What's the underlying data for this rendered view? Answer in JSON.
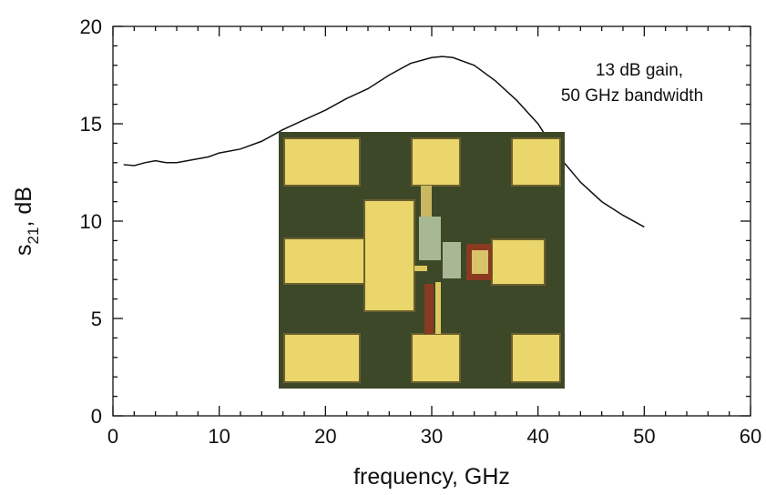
{
  "chart_data": {
    "type": "line",
    "x_label": "frequency, GHz",
    "y_label": [
      "s",
      "21",
      ", dB"
    ],
    "annotation": [
      "13 dB gain,",
      "50 GHz bandwidth"
    ],
    "x": [
      1,
      2,
      3,
      4,
      5,
      6,
      7,
      8,
      9,
      10,
      12,
      14,
      16,
      18,
      20,
      22,
      24,
      26,
      28,
      30,
      31,
      32,
      34,
      36,
      38,
      40,
      42,
      44,
      46,
      48,
      50
    ],
    "series": [
      {
        "color": "#111111",
        "values": [
          12.9,
          12.85,
          13.0,
          13.1,
          13.0,
          13.0,
          13.1,
          13.2,
          13.3,
          13.5,
          13.7,
          14.1,
          14.7,
          15.2,
          15.7,
          16.3,
          16.8,
          17.5,
          18.1,
          18.4,
          18.45,
          18.4,
          18.0,
          17.2,
          16.2,
          15.0,
          13.3,
          12.0,
          11.0,
          10.3,
          9.7
        ]
      }
    ],
    "xlim": [
      0,
      60
    ],
    "ylim": [
      0,
      20
    ],
    "xticks": [
      0,
      10,
      20,
      30,
      40,
      50,
      60
    ],
    "yticks": [
      0,
      5,
      10,
      15,
      20
    ],
    "minor_xticks": [
      2,
      4,
      6,
      8,
      12,
      14,
      16,
      18,
      22,
      24,
      26,
      28,
      32,
      34,
      36,
      38,
      42,
      44,
      46,
      48,
      52,
      54,
      56,
      58
    ],
    "minor_yticks": [
      1,
      2,
      3,
      4,
      6,
      7,
      8,
      9,
      11,
      12,
      13,
      14,
      16,
      17,
      18,
      19
    ],
    "grid": false
  }
}
